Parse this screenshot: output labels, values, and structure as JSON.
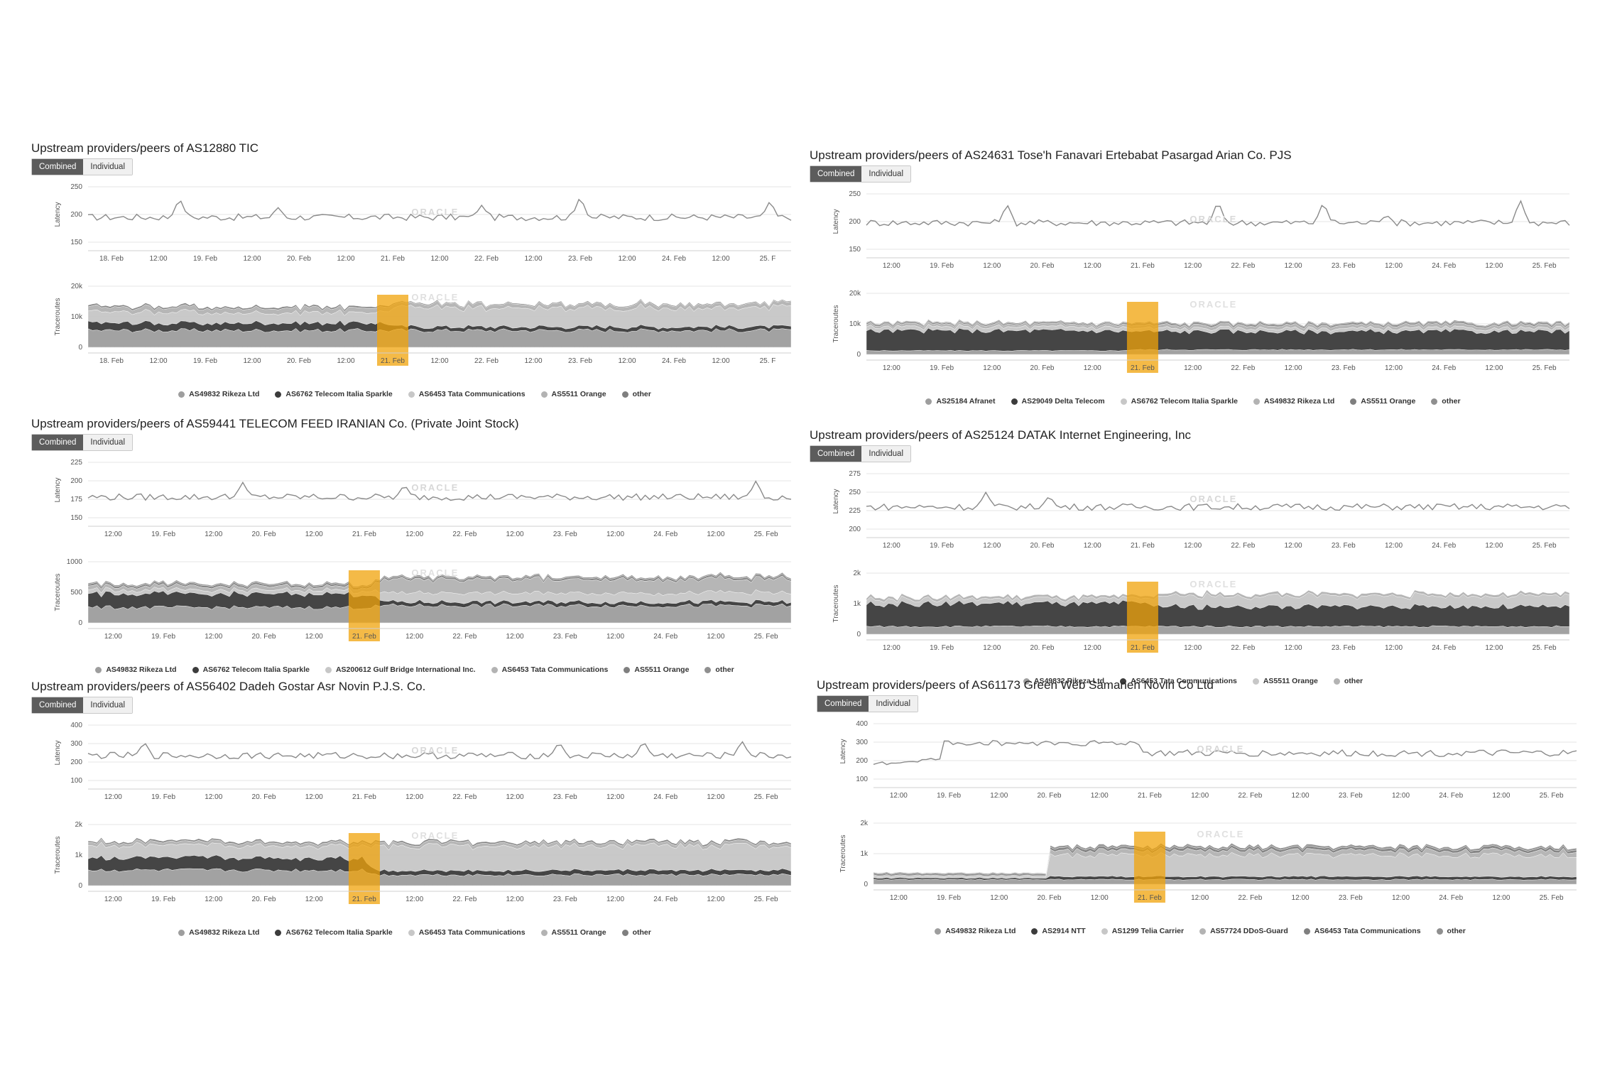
{
  "legend_colors": [
    "#9e9e9e",
    "#3c3c3c",
    "#c7c7c7",
    "#b3b3b3",
    "#7f7f7f",
    "#8f8f8f"
  ],
  "highlight_color": "#f0a30a",
  "chart_data": [
    {
      "type": "area",
      "title": "Upstream providers/peers of AS12880 TIC",
      "tabs": [
        "Combined",
        "Individual"
      ],
      "watermark": "ORACLE",
      "latency": {
        "ylabel": "Latency",
        "yticks": [
          "250",
          "200",
          "150"
        ],
        "ylim": [
          150,
          250
        ],
        "baseline": 195,
        "spikes": [
          {
            "t": 0.13,
            "v": 230
          },
          {
            "t": 0.27,
            "v": 213
          },
          {
            "t": 0.56,
            "v": 217
          },
          {
            "t": 0.7,
            "v": 233
          },
          {
            "t": 0.97,
            "v": 225
          }
        ]
      },
      "traceroutes": {
        "ylabel": "Traceroutes",
        "yticks": [
          "20k",
          "10k",
          "0"
        ],
        "ylim": [
          0,
          20000
        ],
        "series": [
          {
            "name": "AS49832 Rikeza Ltd",
            "before": 5500,
            "after": 5500
          },
          {
            "name": "AS6762 Telecom Italia Sparkle",
            "before": 2500,
            "after": 1200
          },
          {
            "name": "AS6453 Tata Communications",
            "before": 3500,
            "after": 6200
          },
          {
            "name": "AS5511 Orange",
            "before": 1500,
            "after": 1200
          },
          {
            "name": "other",
            "before": 500,
            "after": 300
          }
        ]
      },
      "drop_at": 0.42,
      "xticks": [
        "18. Feb",
        "12:00",
        "19. Feb",
        "12:00",
        "20. Feb",
        "12:00",
        "21. Feb",
        "12:00",
        "22. Feb",
        "12:00",
        "23. Feb",
        "12:00",
        "24. Feb",
        "12:00",
        "25. F"
      ],
      "highlight": {
        "label": "21. Feb",
        "tick_index": 6
      }
    },
    {
      "type": "area",
      "title": "Upstream providers/peers of AS24631 Tose'h Fanavari Ertebabat Pasargad Arian Co. PJS",
      "tabs": [
        "Combined",
        "Individual"
      ],
      "watermark": "ORACLE",
      "latency": {
        "ylabel": "Latency",
        "yticks": [
          "250",
          "200",
          "150"
        ],
        "ylim": [
          150,
          250
        ],
        "baseline": 198,
        "spikes": [
          {
            "t": 0.2,
            "v": 232
          },
          {
            "t": 0.5,
            "v": 238
          },
          {
            "t": 0.65,
            "v": 236
          },
          {
            "t": 0.74,
            "v": 212
          },
          {
            "t": 0.93,
            "v": 240
          }
        ]
      },
      "traceroutes": {
        "ylabel": "Traceroutes",
        "yticks": [
          "20k",
          "10k",
          "0"
        ],
        "ylim": [
          0,
          20000
        ],
        "series": [
          {
            "name": "AS25184 Afranet",
            "before": 1200,
            "after": 1500
          },
          {
            "name": "AS29049 Delta Telecom",
            "before": 6500,
            "after": 6000
          },
          {
            "name": "AS6762 Telecom Italia Sparkle",
            "before": 1200,
            "after": 1000
          },
          {
            "name": "AS49832 Rikeza Ltd",
            "before": 800,
            "after": 1000
          },
          {
            "name": "AS5511 Orange",
            "before": 400,
            "after": 500
          },
          {
            "name": "other",
            "before": 300,
            "after": 300
          }
        ]
      },
      "drop_at": 0.36,
      "xticks": [
        "12:00",
        "19. Feb",
        "12:00",
        "20. Feb",
        "12:00",
        "21. Feb",
        "12:00",
        "22. Feb",
        "12:00",
        "23. Feb",
        "12:00",
        "24. Feb",
        "12:00",
        "25. Feb"
      ],
      "highlight": {
        "label": "21. Feb",
        "tick_index": 5
      }
    },
    {
      "type": "area",
      "title": "Upstream providers/peers of AS59441 TELECOM FEED IRANIAN Co. (Private Joint Stock)",
      "tabs": [
        "Combined",
        "Individual"
      ],
      "watermark": "ORACLE",
      "latency": {
        "ylabel": "Latency",
        "yticks": [
          "225",
          "200",
          "175",
          "150"
        ],
        "ylim": [
          150,
          225
        ],
        "baseline": 178,
        "spikes": [
          {
            "t": 0.22,
            "v": 198
          },
          {
            "t": 0.45,
            "v": 195
          },
          {
            "t": 0.95,
            "v": 200
          }
        ]
      },
      "traceroutes": {
        "ylabel": "Traceroutes",
        "yticks": [
          "1000",
          "500",
          "0"
        ],
        "ylim": [
          0,
          1000
        ],
        "series": [
          {
            "name": "AS49832 Rikeza Ltd",
            "before": 250,
            "after": 280
          },
          {
            "name": "AS6762 Telecom Italia Sparkle",
            "before": 220,
            "after": 60
          },
          {
            "name": "AS200612 Gulf Bridge International Inc.",
            "before": 60,
            "after": 150
          },
          {
            "name": "AS6453 Tata Communications",
            "before": 60,
            "after": 220
          },
          {
            "name": "AS5511 Orange",
            "before": 30,
            "after": 30
          },
          {
            "name": "other",
            "before": 20,
            "after": 20
          }
        ]
      },
      "drop_at": 0.4,
      "xticks": [
        "12:00",
        "19. Feb",
        "12:00",
        "20. Feb",
        "12:00",
        "21. Feb",
        "12:00",
        "22. Feb",
        "12:00",
        "23. Feb",
        "12:00",
        "24. Feb",
        "12:00",
        "25. Feb"
      ],
      "highlight": {
        "label": "21. Feb",
        "tick_index": 5
      }
    },
    {
      "type": "area",
      "title": "Upstream providers/peers of AS25124 DATAK Internet Engineering, Inc",
      "tabs": [
        "Combined",
        "Individual"
      ],
      "watermark": "ORACLE",
      "latency": {
        "ylabel": "Latency",
        "yticks": [
          "275",
          "250",
          "225",
          "200"
        ],
        "ylim": [
          200,
          275
        ],
        "baseline": 230,
        "spikes": [
          {
            "t": 0.17,
            "v": 250
          },
          {
            "t": 0.26,
            "v": 245
          }
        ]
      },
      "traceroutes": {
        "ylabel": "Traceroutes",
        "yticks": [
          "2k",
          "1k",
          "0"
        ],
        "ylim": [
          0,
          2000
        ],
        "series": [
          {
            "name": "AS49832 Rikeza Ltd",
            "before": 250,
            "after": 250
          },
          {
            "name": "AS6453 Tata Communications",
            "before": 750,
            "after": 650
          },
          {
            "name": "AS5511 Orange",
            "before": 150,
            "after": 350
          },
          {
            "name": "other",
            "before": 80,
            "after": 80
          }
        ]
      },
      "drop_at": 0.4,
      "xticks": [
        "12:00",
        "19. Feb",
        "12:00",
        "20. Feb",
        "12:00",
        "21. Feb",
        "12:00",
        "22. Feb",
        "12:00",
        "23. Feb",
        "12:00",
        "24. Feb",
        "12:00",
        "25. Feb"
      ],
      "highlight": {
        "label": "21. Feb",
        "tick_index": 5
      }
    },
    {
      "type": "area",
      "title": "Upstream providers/peers of AS56402 Dadeh Gostar Asr Novin P.J.S. Co.",
      "tabs": [
        "Combined",
        "Individual"
      ],
      "watermark": "ORACLE",
      "latency": {
        "ylabel": "Latency",
        "yticks": [
          "400",
          "300",
          "200",
          "100"
        ],
        "ylim": [
          100,
          400
        ],
        "baseline": 235,
        "spikes": [
          {
            "t": 0.08,
            "v": 310
          },
          {
            "t": 0.67,
            "v": 310
          },
          {
            "t": 0.79,
            "v": 315
          },
          {
            "t": 0.93,
            "v": 315
          }
        ]
      },
      "traceroutes": {
        "ylabel": "Traceroutes",
        "yticks": [
          "2k",
          "1k",
          "0"
        ],
        "ylim": [
          0,
          2000
        ],
        "series": [
          {
            "name": "AS49832 Rikeza Ltd",
            "before": 500,
            "after": 350
          },
          {
            "name": "AS6762 Telecom Italia Sparkle",
            "before": 400,
            "after": 150
          },
          {
            "name": "AS6453 Tata Communications",
            "before": 400,
            "after": 800
          },
          {
            "name": "AS5511 Orange",
            "before": 100,
            "after": 100
          },
          {
            "name": "other",
            "before": 50,
            "after": 50
          }
        ]
      },
      "drop_at": 0.39,
      "xticks": [
        "12:00",
        "19. Feb",
        "12:00",
        "20. Feb",
        "12:00",
        "21. Feb",
        "12:00",
        "22. Feb",
        "12:00",
        "23. Feb",
        "12:00",
        "24. Feb",
        "12:00",
        "25. Feb"
      ],
      "highlight": {
        "label": "21. Feb",
        "tick_index": 5
      }
    },
    {
      "type": "area",
      "title": "Upstream providers/peers of AS61173 Green Web Samaneh Novin Co Ltd",
      "tabs": [
        "Combined",
        "Individual"
      ],
      "watermark": "ORACLE",
      "latency": {
        "ylabel": "Latency",
        "yticks": [
          "400",
          "300",
          "200",
          "100"
        ],
        "ylim": [
          100,
          400
        ],
        "baseline": 240,
        "early": 180,
        "plateau": {
          "from": 0.1,
          "to": 0.38,
          "v": 295
        }
      },
      "traceroutes": {
        "ylabel": "Traceroutes",
        "yticks": [
          "2k",
          "1k",
          "0"
        ],
        "ylim": [
          0,
          2000
        ],
        "series": [
          {
            "name": "AS49832 Rikeza Ltd",
            "before": 150,
            "after": 150
          },
          {
            "name": "AS2914 NTT",
            "before": 50,
            "after": 100
          },
          {
            "name": "AS1299 Telia Carrier",
            "before": 50,
            "after": 700
          },
          {
            "name": "AS57724 DDoS-Guard",
            "before": 40,
            "after": 150
          },
          {
            "name": "AS6453 Tata Communications",
            "before": 50,
            "after": 80
          },
          {
            "name": "other",
            "before": 30,
            "after": 60
          }
        ]
      },
      "step_at": 0.25,
      "xticks": [
        "12:00",
        "19. Feb",
        "12:00",
        "20. Feb",
        "12:00",
        "21. Feb",
        "12:00",
        "22. Feb",
        "12:00",
        "23. Feb",
        "12:00",
        "24. Feb",
        "12:00",
        "25. Feb"
      ],
      "highlight": {
        "label": "21. Feb",
        "tick_index": 5
      }
    }
  ]
}
